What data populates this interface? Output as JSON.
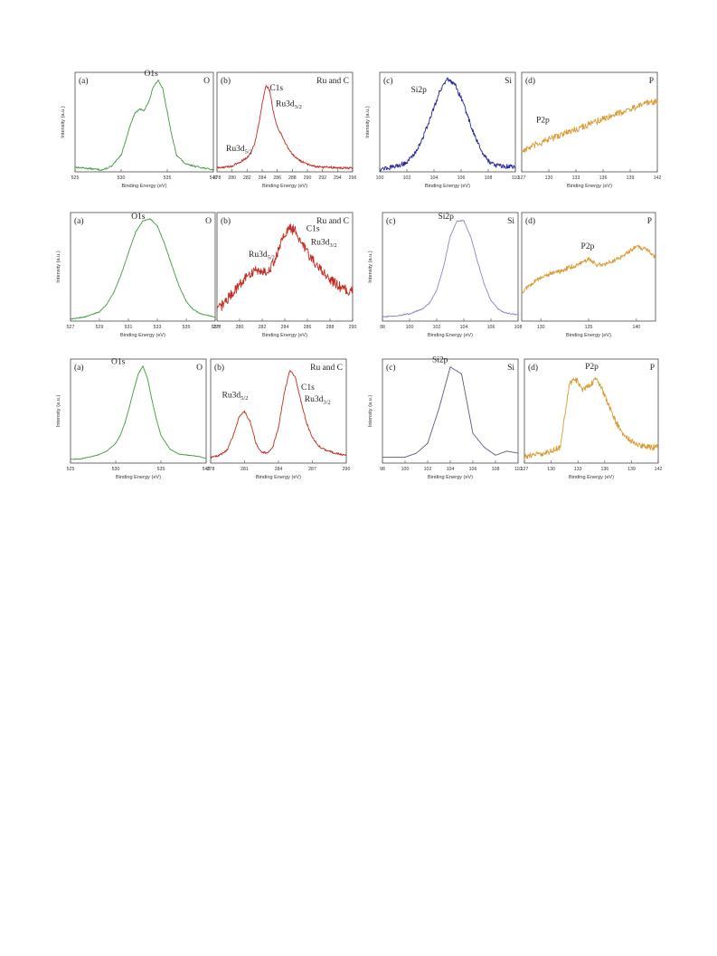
{
  "yaxis_label": "Intensity (a.u.)",
  "xaxis_label": "Binding Energy (eV)",
  "chart_data": [
    {
      "id": "r1a",
      "type": "line",
      "letter": "(a)",
      "element": "O",
      "peak_label": "O1s",
      "color": "#3f9a3f",
      "xlim": [
        525,
        540
      ],
      "ticks": [
        525,
        530,
        535,
        540
      ],
      "ylim": [
        0,
        1.05
      ],
      "noise": 0.008,
      "x": [
        525,
        526,
        527,
        528,
        529,
        530,
        530.5,
        531,
        531.5,
        532,
        532.5,
        533,
        533.5,
        534,
        534.5,
        535,
        535.5,
        536,
        537,
        538,
        539,
        540
      ],
      "y": [
        0.05,
        0.04,
        0.03,
        0.02,
        0.06,
        0.18,
        0.33,
        0.5,
        0.62,
        0.66,
        0.65,
        0.74,
        0.9,
        0.97,
        0.88,
        0.63,
        0.38,
        0.18,
        0.08,
        0.06,
        0.04,
        0.02
      ],
      "labels": [
        {
          "key": "O1s",
          "x": 532.5,
          "y": 1.01
        }
      ]
    },
    {
      "id": "r1b",
      "type": "line",
      "letter": "(b)",
      "element": "Ru and C",
      "peak_label": "C1s",
      "color": "#c42a20",
      "xlim": [
        278,
        296
      ],
      "ticks": [
        278,
        280,
        282,
        284,
        286,
        288,
        290,
        292,
        294,
        296
      ],
      "ylim": [
        0,
        1.05
      ],
      "noise": 0.012,
      "x": [
        278,
        279,
        280,
        281,
        282,
        282.5,
        283,
        283.5,
        284,
        284.5,
        285,
        285.5,
        286,
        286.5,
        287,
        287.5,
        288,
        289,
        290,
        291,
        292,
        293,
        294,
        296
      ],
      "y": [
        0.04,
        0.05,
        0.06,
        0.1,
        0.15,
        0.2,
        0.3,
        0.48,
        0.72,
        0.92,
        0.86,
        0.62,
        0.48,
        0.4,
        0.32,
        0.24,
        0.18,
        0.12,
        0.08,
        0.06,
        0.05,
        0.05,
        0.04,
        0.04
      ],
      "labels": [
        {
          "key": "C1s",
          "x": 285,
          "y": 0.86
        },
        {
          "key": "Ru3d3",
          "x": 285.8,
          "y": 0.69
        },
        {
          "key": "Ru3d5",
          "x": 279.2,
          "y": 0.22
        }
      ]
    },
    {
      "id": "r1c",
      "type": "line",
      "letter": "(c)",
      "element": "Si",
      "peak_label": "Si2p",
      "color": "#24249a",
      "xlim": [
        100,
        110
      ],
      "ticks": [
        100,
        102,
        104,
        106,
        108,
        110
      ],
      "ylim": [
        0,
        1.05
      ],
      "noise": 0.025,
      "x": [
        100,
        101,
        102,
        102.5,
        103,
        103.5,
        104,
        104.5,
        105,
        105.5,
        106,
        106.5,
        107,
        107.5,
        108,
        108.5,
        109,
        110
      ],
      "y": [
        0.03,
        0.05,
        0.1,
        0.18,
        0.3,
        0.48,
        0.68,
        0.88,
        0.97,
        0.93,
        0.78,
        0.58,
        0.38,
        0.22,
        0.12,
        0.07,
        0.06,
        0.05
      ],
      "labels": [
        {
          "key": "Si2p",
          "x": 102.3,
          "y": 0.84
        }
      ]
    },
    {
      "id": "r1d",
      "type": "line",
      "letter": "(d)",
      "element": "P",
      "peak_label": "P2p",
      "color": "#d89a30",
      "xlim": [
        127,
        142
      ],
      "ticks": [
        127,
        130,
        133,
        136,
        139,
        142
      ],
      "ylim": [
        0,
        1.05
      ],
      "noise": 0.035,
      "x": [
        127,
        129,
        131,
        133,
        135,
        137,
        139,
        141,
        142
      ],
      "y": [
        0.22,
        0.3,
        0.38,
        0.45,
        0.52,
        0.6,
        0.66,
        0.73,
        0.75
      ],
      "labels": [
        {
          "key": "P2p",
          "x": 128.6,
          "y": 0.52
        }
      ]
    },
    {
      "id": "r2a",
      "type": "line",
      "letter": "(a)",
      "element": "O",
      "peak_label": "O1s",
      "color": "#3f9a3f",
      "xlim": [
        527,
        537
      ],
      "ticks": [
        527,
        529,
        531,
        533,
        535,
        537
      ],
      "ylim": [
        0,
        1.05
      ],
      "noise": 0.004,
      "x": [
        527,
        528,
        529,
        529.5,
        530,
        530.5,
        531,
        531.5,
        532,
        532.5,
        533,
        533.5,
        534,
        534.5,
        535,
        535.5,
        536,
        537
      ],
      "y": [
        0.02,
        0.04,
        0.09,
        0.16,
        0.28,
        0.45,
        0.66,
        0.86,
        0.97,
        0.99,
        0.92,
        0.75,
        0.54,
        0.34,
        0.19,
        0.11,
        0.07,
        0.04
      ],
      "labels": [
        {
          "key": "O1s",
          "x": 531.2,
          "y": 0.99
        }
      ]
    },
    {
      "id": "r2b",
      "type": "line",
      "letter": "(b)",
      "element": "Ru and C",
      "peak_label": "C1s",
      "color": "#c42a20",
      "xlim": [
        278,
        290
      ],
      "ticks": [
        278,
        280,
        282,
        284,
        286,
        288,
        290
      ],
      "ylim": [
        0,
        1.05
      ],
      "noise": 0.05,
      "x": [
        278,
        279,
        280,
        281,
        281.5,
        282,
        282.5,
        283,
        283.5,
        284,
        284.5,
        285,
        285.5,
        286,
        287,
        288,
        289,
        290
      ],
      "y": [
        0.1,
        0.22,
        0.36,
        0.46,
        0.5,
        0.48,
        0.48,
        0.56,
        0.7,
        0.84,
        0.9,
        0.86,
        0.76,
        0.66,
        0.52,
        0.4,
        0.32,
        0.28
      ],
      "labels": [
        {
          "key": "C1s",
          "x": 285.9,
          "y": 0.87
        },
        {
          "key": "Ru3d3",
          "x": 286.3,
          "y": 0.74
        },
        {
          "key": "Ru3d5",
          "x": 280.8,
          "y": 0.62
        }
      ]
    },
    {
      "id": "r2c",
      "type": "line",
      "letter": "(c)",
      "element": "Si",
      "peak_label": "Si2p",
      "color": "#8a88cc",
      "xlim": [
        98,
        108
      ],
      "ticks": [
        98,
        100,
        102,
        104,
        106,
        108
      ],
      "ylim": [
        0,
        1.05
      ],
      "noise": 0.006,
      "x": [
        98,
        99,
        100,
        101,
        101.5,
        102,
        102.5,
        103,
        103.5,
        104,
        104.5,
        105,
        105.5,
        106,
        106.5,
        107,
        108
      ],
      "y": [
        0.04,
        0.05,
        0.07,
        0.12,
        0.18,
        0.3,
        0.52,
        0.82,
        0.97,
        0.97,
        0.82,
        0.58,
        0.36,
        0.2,
        0.12,
        0.08,
        0.06
      ],
      "labels": [
        {
          "key": "Si2p",
          "x": 102.1,
          "y": 0.99
        }
      ]
    },
    {
      "id": "r2d",
      "type": "line",
      "letter": "(d)",
      "element": "P",
      "peak_label": "P2p",
      "color": "#d89a30",
      "xlim": [
        128,
        142
      ],
      "ticks": [
        130,
        135,
        140
      ],
      "ylim": [
        0,
        1.05
      ],
      "noise": 0.022,
      "x": [
        128,
        129,
        130,
        131,
        132,
        133,
        134,
        135,
        136,
        137,
        138,
        139,
        140,
        141,
        142
      ],
      "y": [
        0.28,
        0.36,
        0.42,
        0.46,
        0.48,
        0.52,
        0.55,
        0.6,
        0.54,
        0.56,
        0.6,
        0.66,
        0.72,
        0.7,
        0.62
      ],
      "labels": [
        {
          "key": "P2p",
          "x": 134.2,
          "y": 0.7
        }
      ]
    },
    {
      "id": "r3a",
      "type": "line",
      "letter": "(a)",
      "element": "O",
      "peak_label": "O1s",
      "color": "#3f9a3f",
      "xlim": [
        525,
        540
      ],
      "ticks": [
        525,
        530,
        535,
        540
      ],
      "ylim": [
        0,
        1.05
      ],
      "noise": 0.003,
      "x": [
        525,
        526,
        527,
        528,
        529,
        530,
        530.5,
        531,
        531.5,
        532,
        532.5,
        533,
        533.5,
        534,
        534.5,
        535,
        536,
        537,
        538,
        539,
        540
      ],
      "y": [
        0.04,
        0.04,
        0.06,
        0.08,
        0.12,
        0.2,
        0.28,
        0.4,
        0.56,
        0.74,
        0.9,
        0.98,
        0.86,
        0.64,
        0.44,
        0.28,
        0.14,
        0.09,
        0.08,
        0.07,
        0.05
      ],
      "labels": [
        {
          "key": "O1s",
          "x": 529.5,
          "y": 1.0
        }
      ]
    },
    {
      "id": "r3b",
      "type": "line",
      "letter": "(b)",
      "element": "Ru and C",
      "peak_label": "C1s",
      "color": "#c42a20",
      "xlim": [
        278,
        290
      ],
      "ticks": [
        278,
        281,
        284,
        287,
        290
      ],
      "ylim": [
        0,
        1.05
      ],
      "noise": 0.01,
      "x": [
        278,
        278.5,
        279,
        279.5,
        280,
        280.5,
        281,
        281.5,
        282,
        282.5,
        283,
        283.5,
        284,
        284.5,
        285,
        285.5,
        286,
        286.5,
        287,
        287.5,
        288,
        289,
        290
      ],
      "y": [
        0.06,
        0.07,
        0.09,
        0.14,
        0.28,
        0.46,
        0.52,
        0.42,
        0.2,
        0.11,
        0.1,
        0.16,
        0.36,
        0.7,
        0.94,
        0.86,
        0.62,
        0.4,
        0.26,
        0.18,
        0.14,
        0.1,
        0.08
      ],
      "labels": [
        {
          "key": "C1s",
          "x": 286.0,
          "y": 0.74
        },
        {
          "key": "Ru3d3",
          "x": 286.3,
          "y": 0.62
        },
        {
          "key": "Ru3d5",
          "x": 279.0,
          "y": 0.66
        }
      ]
    },
    {
      "id": "r3c",
      "type": "line",
      "letter": "(c)",
      "element": "Si",
      "peak_label": "Si2p",
      "color": "#5a5a82",
      "xlim": [
        98,
        110
      ],
      "ticks": [
        98,
        100,
        102,
        104,
        106,
        108,
        110
      ],
      "ylim": [
        0,
        1.05
      ],
      "noise": 0,
      "x": [
        98,
        99,
        100,
        101,
        102,
        103,
        104,
        105,
        106,
        107,
        108,
        109,
        110
      ],
      "y": [
        0.06,
        0.06,
        0.06,
        0.1,
        0.2,
        0.55,
        0.97,
        0.9,
        0.3,
        0.16,
        0.08,
        0.12,
        0.1
      ],
      "labels": [
        {
          "key": "Si2p",
          "x": 102.4,
          "y": 1.02
        }
      ]
    },
    {
      "id": "r3d",
      "type": "line",
      "letter": "(d)",
      "element": "P",
      "peak_label": "P2p",
      "color": "#d89a30",
      "xlim": [
        127,
        142
      ],
      "ticks": [
        127,
        130,
        133,
        136,
        139,
        142
      ],
      "ylim": [
        0,
        1.05
      ],
      "noise": 0.03,
      "x": [
        127,
        128,
        129,
        130,
        131,
        131.5,
        132,
        132.5,
        133,
        133.5,
        134,
        135,
        135.5,
        136,
        137,
        138,
        139,
        140,
        141,
        142
      ],
      "y": [
        0.06,
        0.08,
        0.1,
        0.12,
        0.16,
        0.45,
        0.78,
        0.86,
        0.82,
        0.74,
        0.76,
        0.84,
        0.8,
        0.68,
        0.46,
        0.3,
        0.22,
        0.18,
        0.16,
        0.16
      ],
      "labels": [
        {
          "key": "P2p",
          "x": 133.8,
          "y": 0.95
        }
      ]
    }
  ]
}
